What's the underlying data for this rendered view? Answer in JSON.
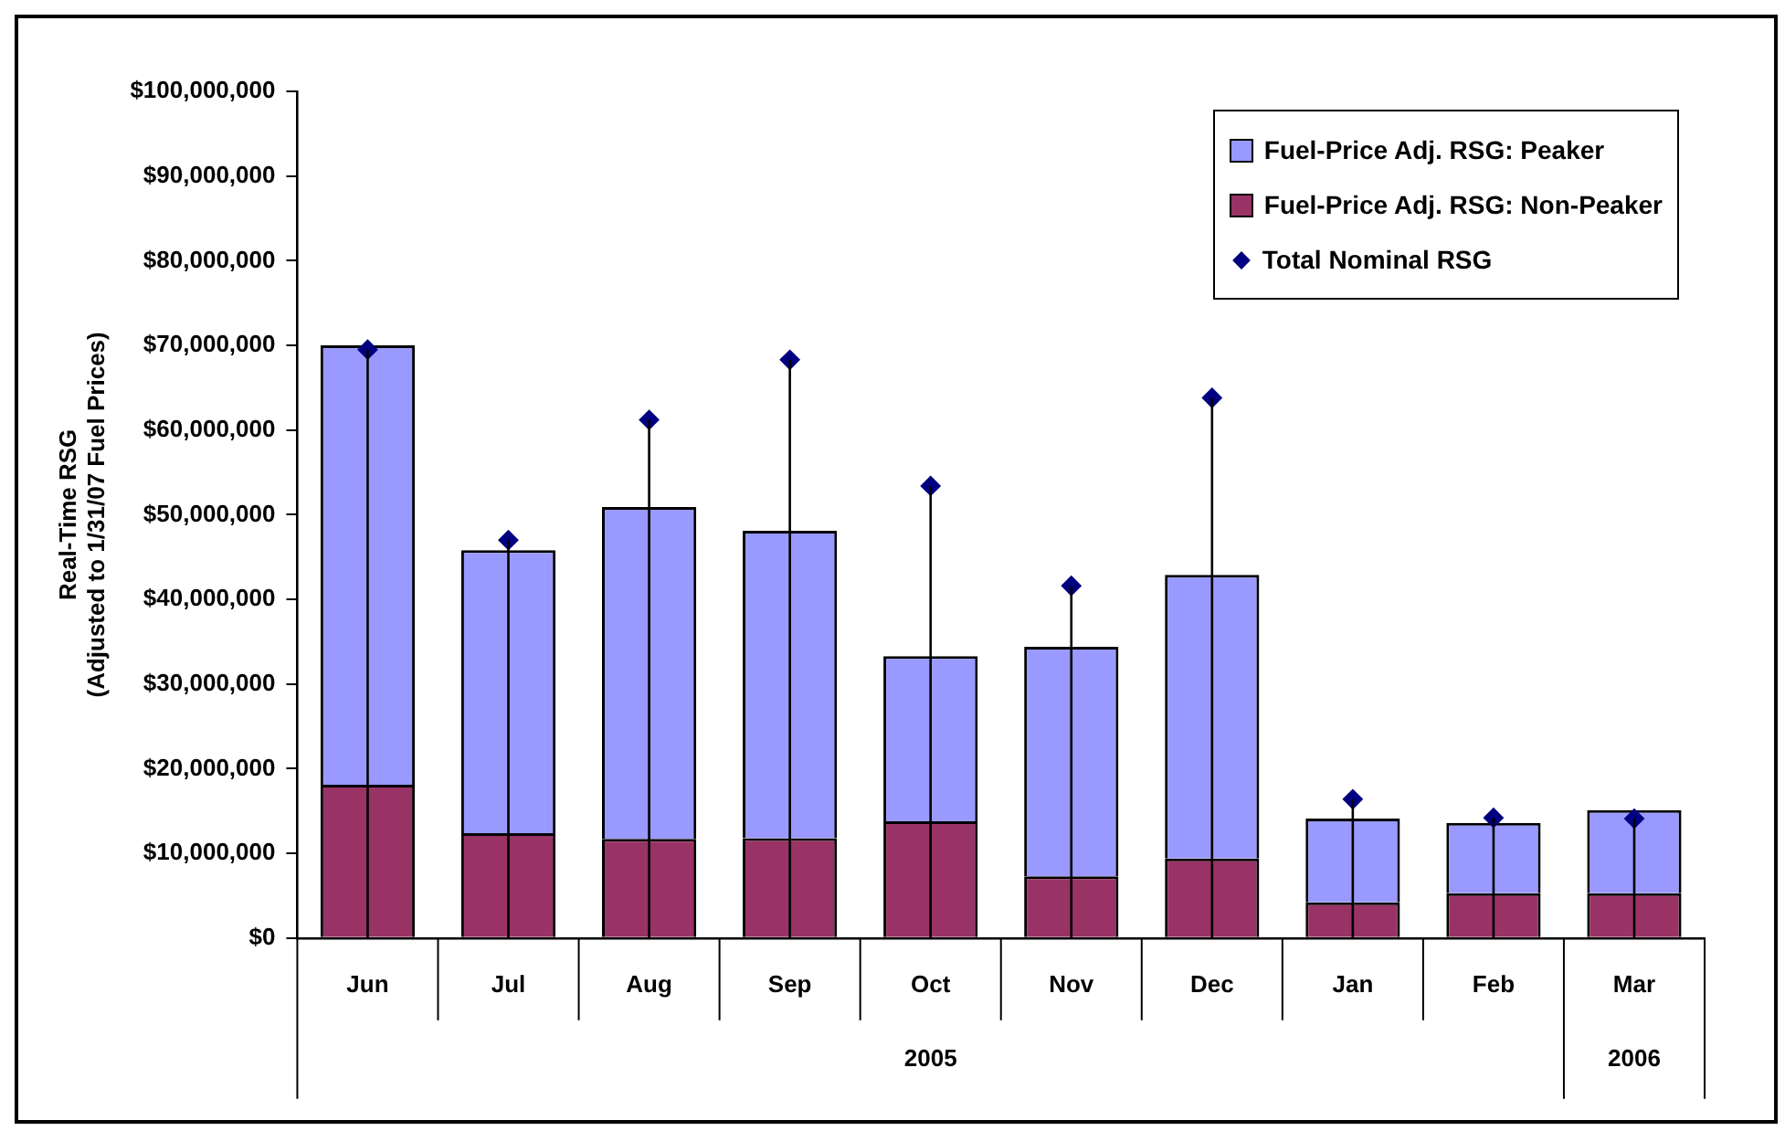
{
  "chart_data": {
    "type": "bar",
    "stacked": true,
    "ylabel": "Real-Time RSG\n(Adjusted to 1/31/07 Fuel Prices)",
    "categories": [
      "Jun",
      "Jul",
      "Aug",
      "Sep",
      "Oct",
      "Nov",
      "Dec",
      "Jan",
      "Feb",
      "Mar"
    ],
    "series": [
      {
        "name": "Fuel-Price Adj. RSG: Non-Peaker",
        "color": "#993366",
        "values": [
          18100000,
          12400000,
          11700000,
          11800000,
          13800000,
          7300000,
          9400000,
          4200000,
          5300000,
          5300000
        ]
      },
      {
        "name": "Fuel-Price Adj. RSG: Peaker",
        "color": "#9999ff",
        "values": [
          51900000,
          33400000,
          39200000,
          36300000,
          19500000,
          27100000,
          33500000,
          9900000,
          8300000,
          9800000
        ]
      },
      {
        "name": "Total Nominal RSG",
        "type": "scatter",
        "marker": "diamond",
        "color": "#000080",
        "values": [
          69500000,
          47000000,
          61200000,
          68300000,
          53400000,
          41600000,
          63800000,
          16400000,
          14200000,
          14100000
        ],
        "errors": [
          [
            0,
            69500000
          ],
          [
            0,
            47000000
          ],
          [
            0,
            61200000
          ],
          [
            0,
            68300000
          ],
          [
            0,
            53400000
          ],
          [
            0,
            41600000
          ],
          [
            0,
            63800000
          ],
          [
            0,
            16400000
          ],
          [
            0,
            14200000
          ],
          [
            0,
            14100000
          ]
        ]
      }
    ],
    "ylim": [
      0,
      100000000
    ],
    "yticks": [
      {
        "value": 0,
        "label": "$0"
      },
      {
        "value": 10000000,
        "label": "$10,000,000"
      },
      {
        "value": 20000000,
        "label": "$20,000,000"
      },
      {
        "value": 30000000,
        "label": "$30,000,000"
      },
      {
        "value": 40000000,
        "label": "$40,000,000"
      },
      {
        "value": 50000000,
        "label": "$50,000,000"
      },
      {
        "value": 60000000,
        "label": "$60,000,000"
      },
      {
        "value": 70000000,
        "label": "$70,000,000"
      },
      {
        "value": 80000000,
        "label": "$80,000,000"
      },
      {
        "value": 90000000,
        "label": "$90,000,000"
      },
      {
        "value": 100000000,
        "label": "$100,000,000"
      }
    ],
    "annotations": [
      "2005",
      "2006"
    ],
    "grid": false,
    "legend": "top right"
  }
}
